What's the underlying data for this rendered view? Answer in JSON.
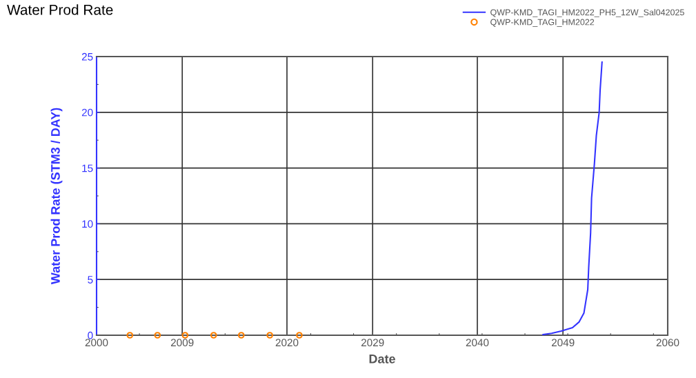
{
  "chart_data": {
    "type": "line",
    "title": "Water Prod Rate",
    "xlabel": "Date",
    "ylabel": "Water Prod Rate (STM3 / DAY)",
    "xlim": [
      2000,
      2060
    ],
    "xticks": [
      2000,
      2009,
      2020,
      2029,
      2040,
      2049,
      2060
    ],
    "ylim": [
      0,
      25
    ],
    "yticks": [
      0,
      5,
      10,
      15,
      20,
      25
    ],
    "grid": true,
    "legend": "top right",
    "series": [
      {
        "name": "QWP-KMD_TAGI_HM2022_PH5_12W_Sal042025",
        "color": "#3333ff",
        "line_style": "solid",
        "marker": "none",
        "x": [
          2046.9,
          2047.8,
          2048.8,
          2050.0,
          2050.7,
          2051.2,
          2051.6,
          2051.7,
          2051.9,
          2052.0,
          2052.3,
          2052.5,
          2052.8,
          2052.9,
          2053.1
        ],
        "values": [
          0.06,
          0.17,
          0.37,
          0.68,
          1.2,
          2.0,
          4.1,
          6.1,
          9.2,
          12.3,
          15.4,
          17.9,
          20.0,
          22.0,
          24.5
        ]
      },
      {
        "name": "QWP-KMD_TAGI_HM2022",
        "type": "scatter",
        "color": "#ff8000",
        "marker": "circle",
        "x": [
          2003.5,
          2006.4,
          2009.3,
          2012.3,
          2015.2,
          2018.2,
          2021.3
        ],
        "values": [
          0,
          0,
          0,
          0,
          0,
          0,
          0
        ]
      }
    ]
  }
}
